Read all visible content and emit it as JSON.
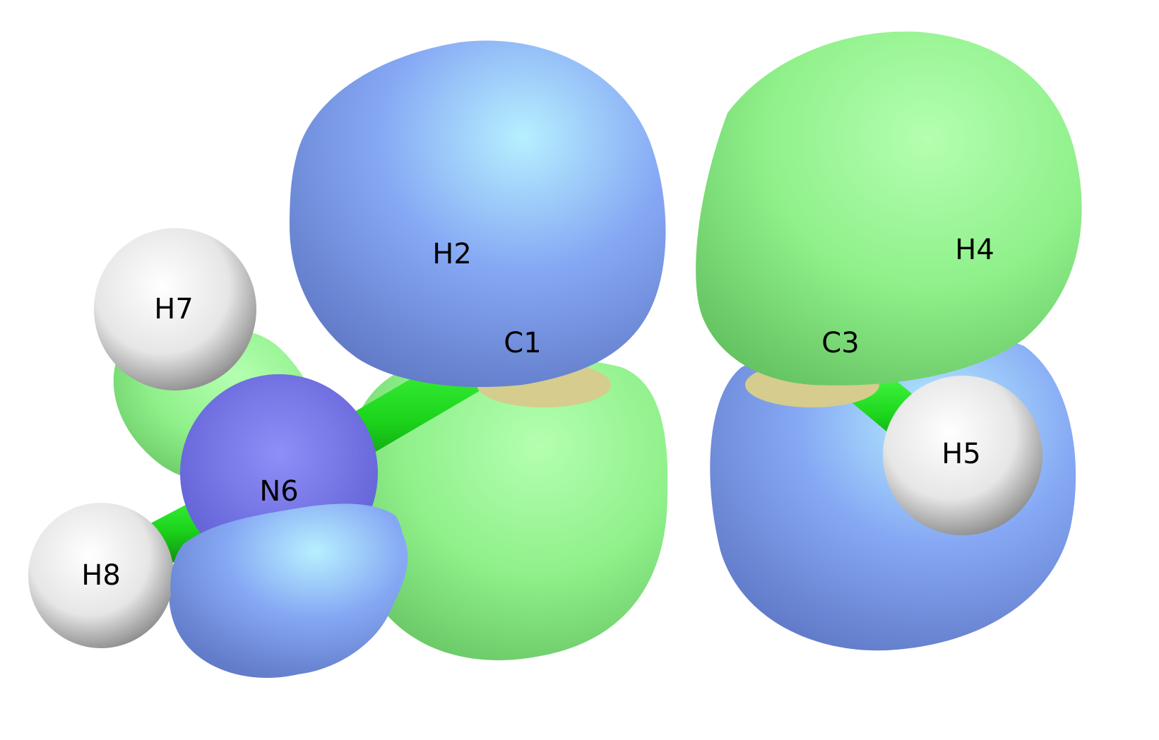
{
  "molecule": {
    "atoms": [
      {
        "label": "H2",
        "element": "H"
      },
      {
        "label": "H4",
        "element": "H"
      },
      {
        "label": "H7",
        "element": "H"
      },
      {
        "label": "C1",
        "element": "C"
      },
      {
        "label": "C3",
        "element": "C"
      },
      {
        "label": "H5",
        "element": "H"
      },
      {
        "label": "N6",
        "element": "N"
      },
      {
        "label": "H8",
        "element": "H"
      }
    ],
    "bonds": [
      [
        "N6",
        "C1"
      ],
      [
        "C1",
        "C3"
      ],
      [
        "C3",
        "H5"
      ],
      [
        "N6",
        "H8"
      ],
      [
        "N6",
        "H7"
      ]
    ]
  },
  "colors": {
    "orbital_positive": "#7fe07a",
    "orbital_negative": "#7f9ff0",
    "bond": "#1fd61f",
    "hydrogen": "#e8e8e8",
    "nitrogen": "#7f7ff0",
    "carbon_ring": "#d6cc8e"
  }
}
